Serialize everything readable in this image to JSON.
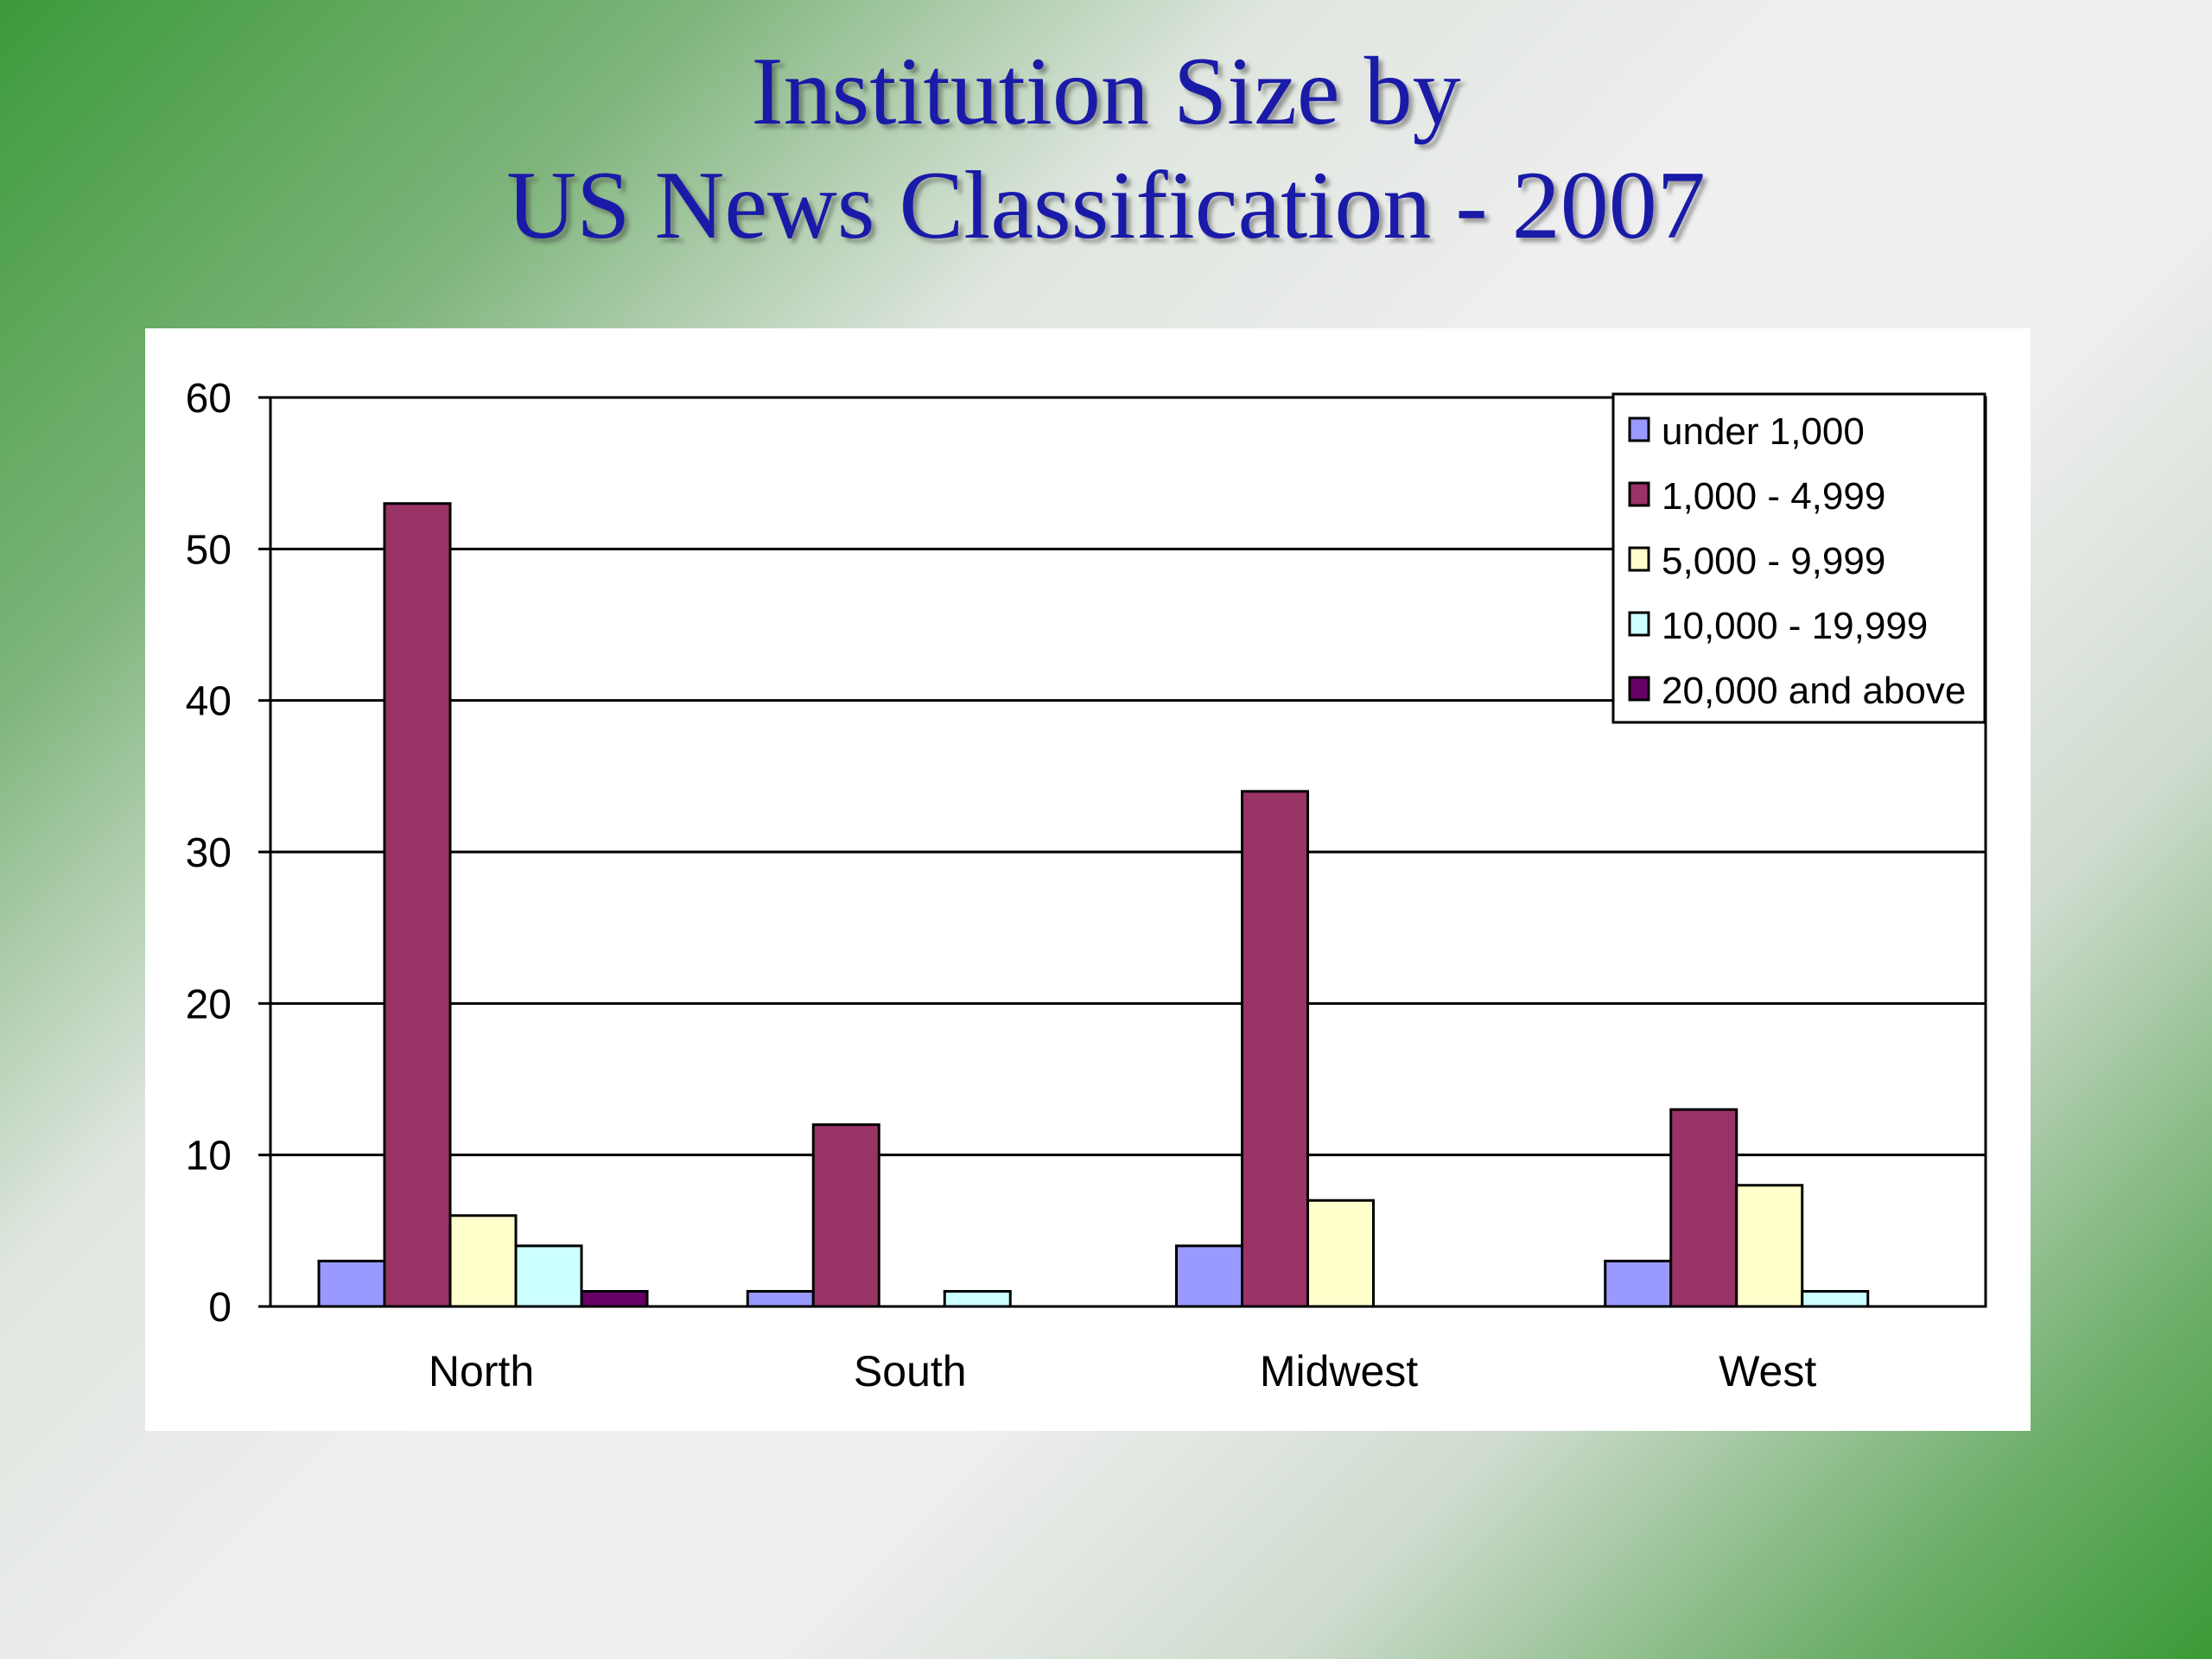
{
  "slide": {
    "title_line1": "Institution Size by",
    "title_line2": "US News Classification - 2007"
  },
  "chart_data": {
    "type": "bar",
    "title": "Institution Size by US News Classification - 2007",
    "categories": [
      "North",
      "South",
      "Midwest",
      "West"
    ],
    "series": [
      {
        "name": "under 1,000",
        "color": "#9999ff",
        "values": [
          3,
          1,
          4,
          3
        ]
      },
      {
        "name": "1,000 - 4,999",
        "color": "#993366",
        "values": [
          53,
          12,
          34,
          13
        ]
      },
      {
        "name": "5,000 - 9,999",
        "color": "#ffffcc",
        "values": [
          6,
          0,
          7,
          8
        ]
      },
      {
        "name": "10,000 - 19,999",
        "color": "#ccffff",
        "values": [
          4,
          1,
          0,
          1
        ]
      },
      {
        "name": "20,000 and above",
        "color": "#660066",
        "values": [
          1,
          0,
          0,
          0
        ]
      }
    ],
    "yticks": [
      "0",
      "10",
      "20",
      "30",
      "40",
      "50",
      "60"
    ],
    "ylim": [
      0,
      60
    ],
    "grid": true,
    "legend_position": "top-right"
  }
}
